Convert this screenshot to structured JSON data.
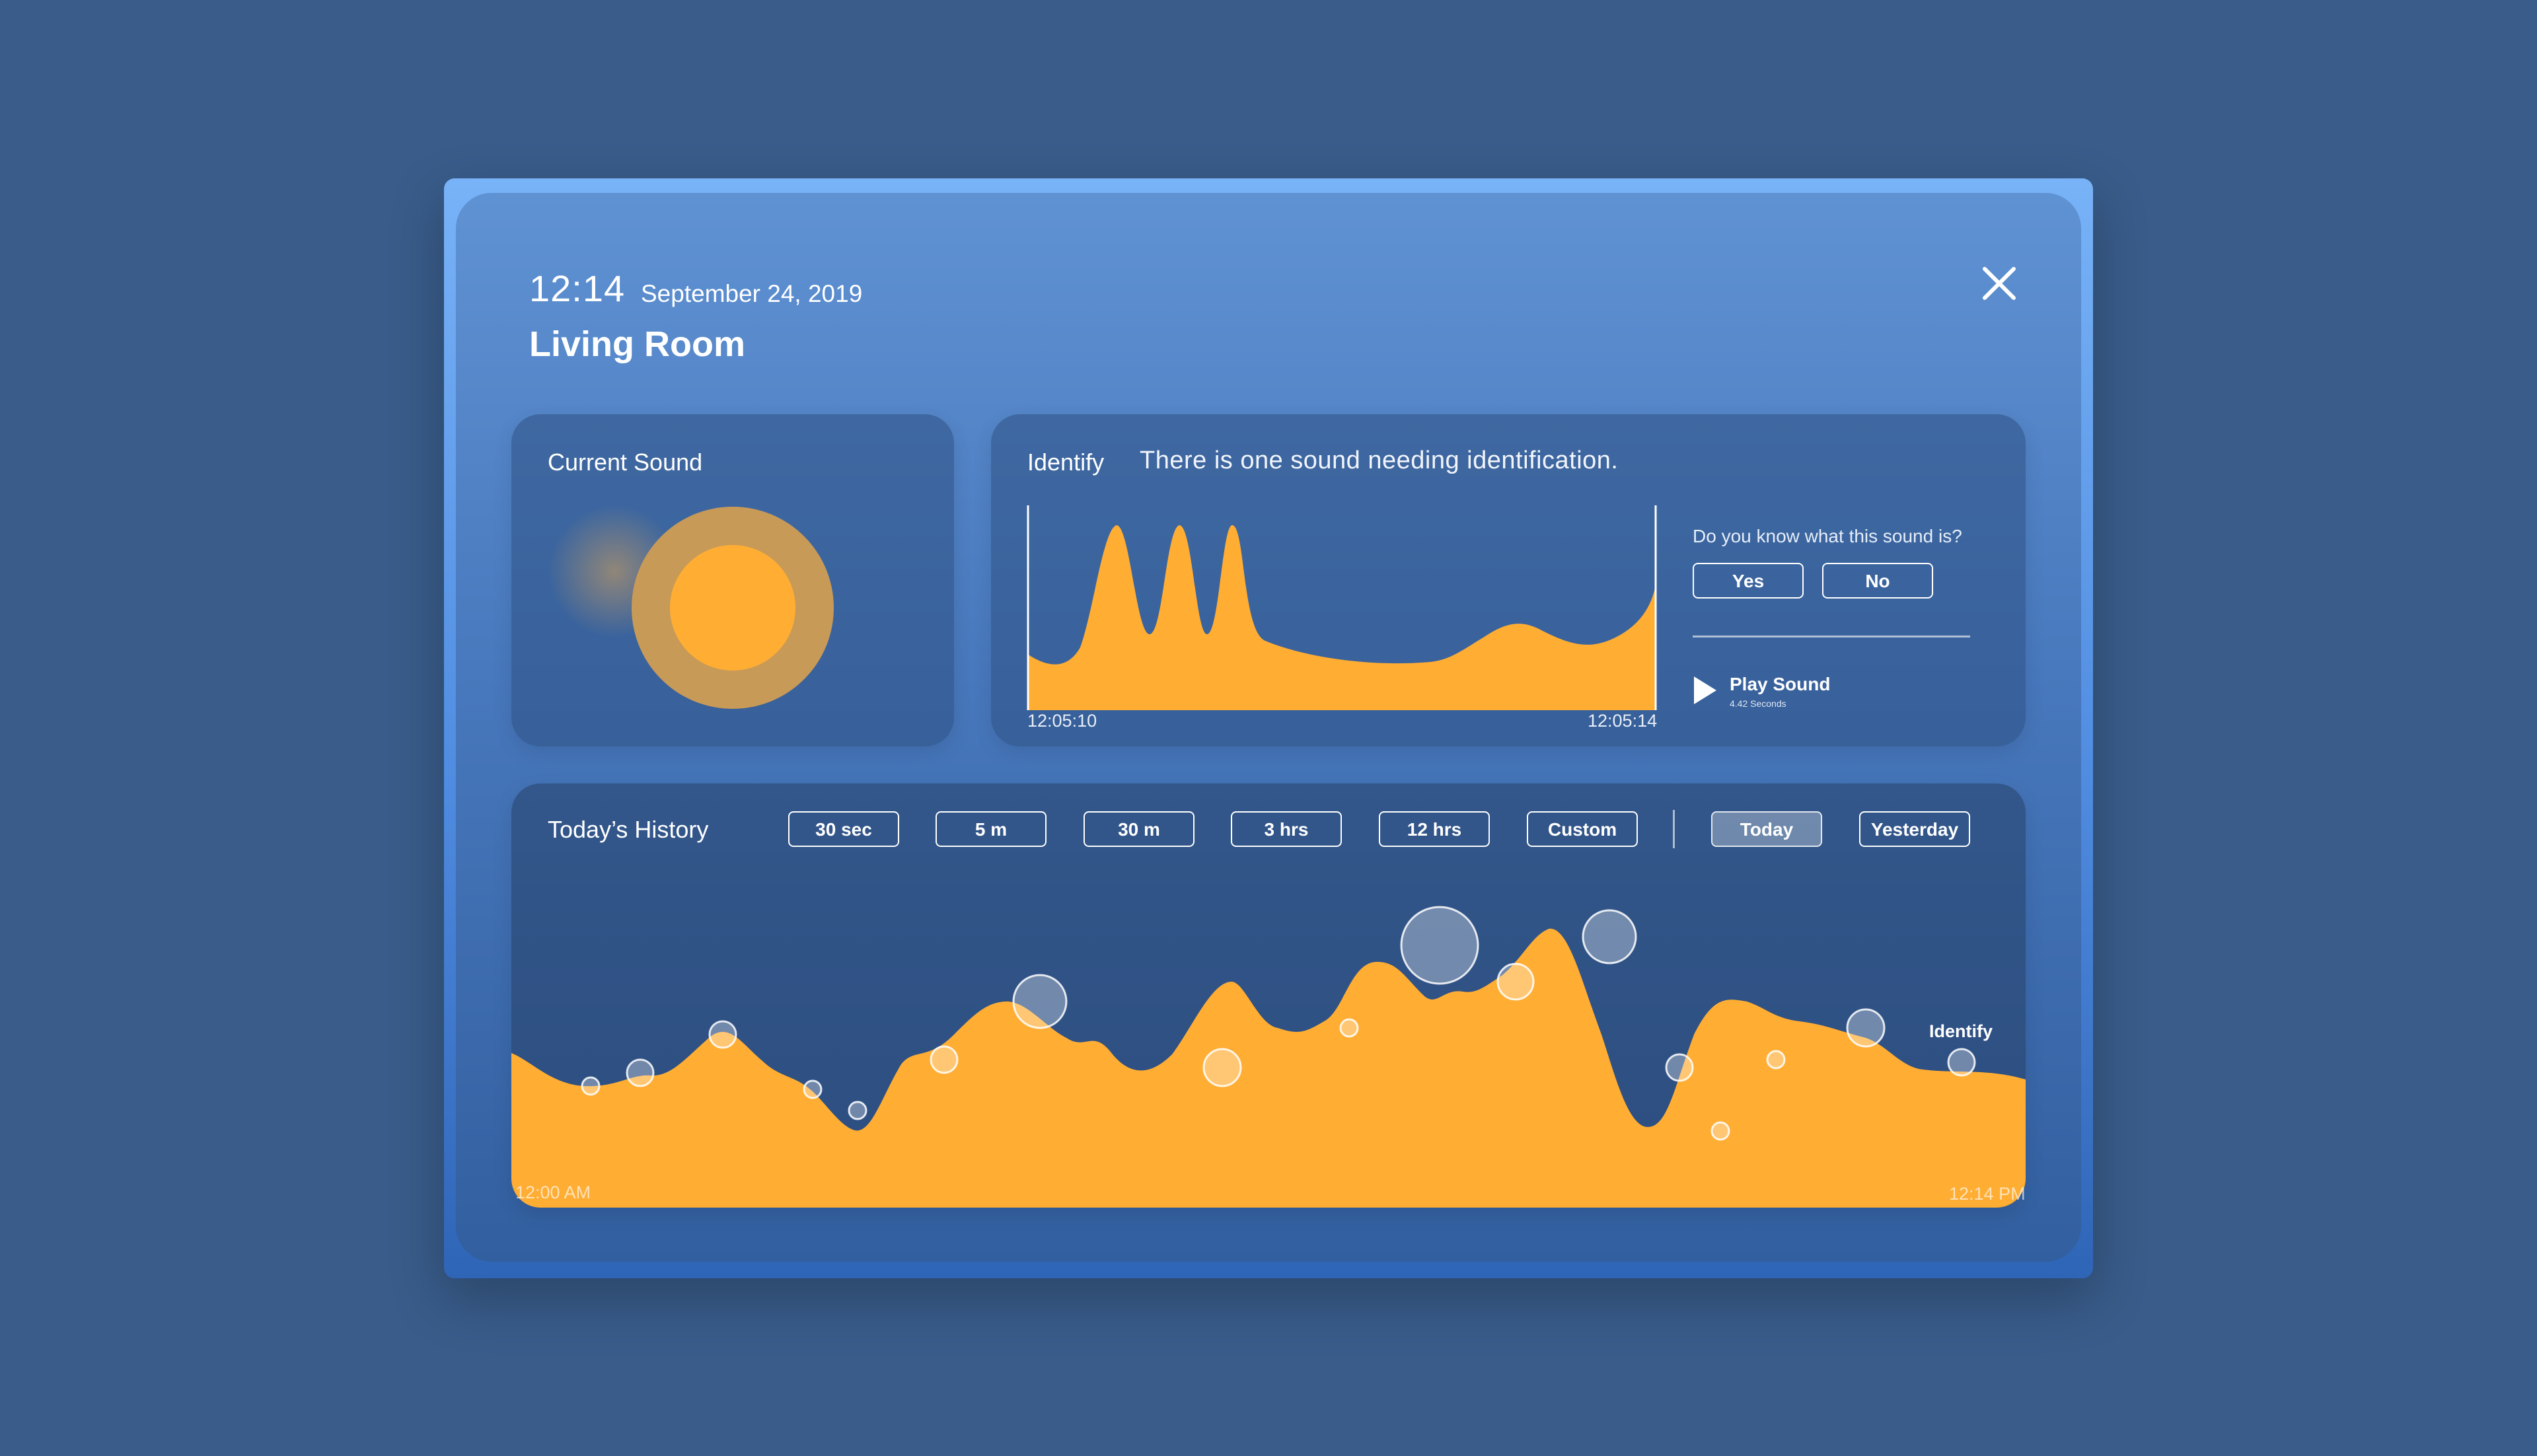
{
  "header": {
    "time": "12:14",
    "date": "September 24, 2019",
    "room": "Living Room"
  },
  "current_sound": {
    "title": "Current Sound"
  },
  "identify": {
    "title": "Identify",
    "message": "There is one sound needing identification.",
    "question": "Do you know what this sound is?",
    "yes_label": "Yes",
    "no_label": "No",
    "play_label": "Play Sound",
    "play_duration": "4.42 Seconds",
    "start_time": "12:05:10",
    "end_time": "12:05:14"
  },
  "history": {
    "title": "Today’s History",
    "ranges": [
      "30 sec",
      "5 m",
      "30 m",
      "3 hrs",
      "12 hrs",
      "Custom"
    ],
    "days": [
      "Today",
      "Yesterday"
    ],
    "selected_day": "Today",
    "start_time": "12:00 AM",
    "end_time": "12:14 PM",
    "identify_tag": "Identify"
  },
  "colors": {
    "accent": "#ffad33",
    "ring": "#c79a58",
    "background": "#395c8a"
  },
  "icons": {
    "close": "close-icon",
    "play": "play-icon"
  }
}
